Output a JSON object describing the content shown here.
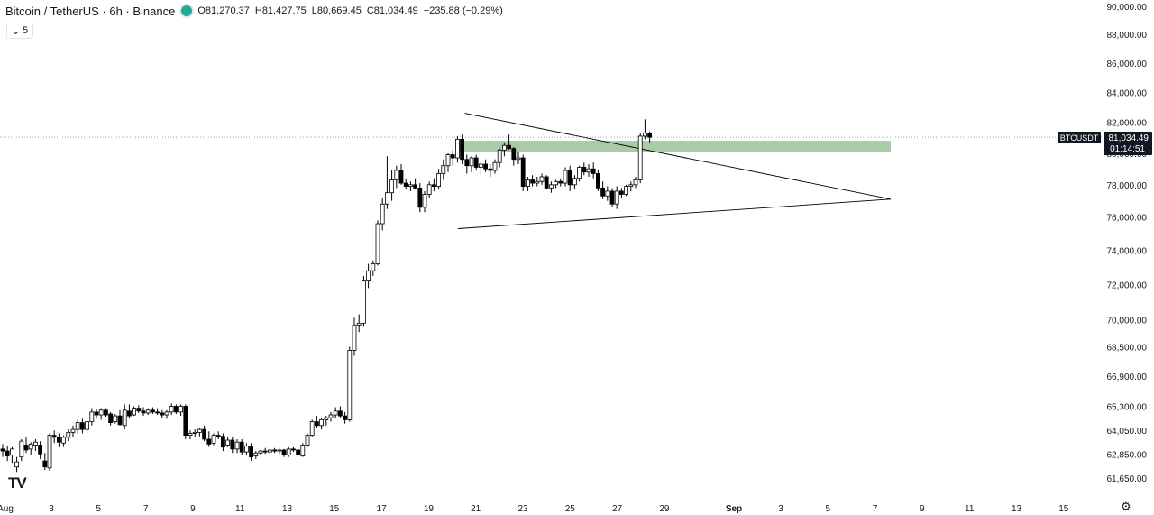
{
  "header": {
    "symbol_title": "Bitcoin / TetherUS · 6h · Binance",
    "open_label": "O",
    "open": "81,270.37",
    "high_label": "H",
    "high": "81,427.75",
    "low_label": "L",
    "low": "80,669.45",
    "close_label": "C",
    "close": "81,034.49",
    "change": "−235.88 (−0.29%)",
    "status_color": "#26a69a"
  },
  "indicator_toggle": {
    "icon": "chevron-down-icon",
    "count": "5"
  },
  "logo_text": "TV",
  "price_tag": {
    "symbol": "BTCUSDT",
    "price": "81,034.49",
    "countdown": "01:14:51"
  },
  "colors": {
    "up_fill": "#ffffff",
    "down_fill": "#000000",
    "wick": "#000000",
    "zone": "#a5c8a3",
    "axis_text": "#131722"
  },
  "chart_data": {
    "type": "candlestick",
    "y_scale": "log",
    "ylim": [
      61000,
      90800
    ],
    "y_ticks": [
      "90,000.00",
      "88,000.00",
      "86,000.00",
      "84,000.00",
      "82,000.00",
      "80,000.00",
      "78,000.00",
      "76,000.00",
      "74,000.00",
      "72,000.00",
      "70,000.00",
      "68,500.00",
      "66,900.00",
      "65,300.00",
      "64,050.00",
      "62,850.00",
      "61,650.00"
    ],
    "x_ticks": [
      "Aug",
      "3",
      "5",
      "7",
      "9",
      "11",
      "13",
      "15",
      "17",
      "19",
      "21",
      "23",
      "25",
      "27",
      "29",
      "Sep",
      "3",
      "5",
      "7",
      "9",
      "11",
      "13",
      "15"
    ],
    "current_price": 81034.49,
    "candles": [
      [
        63100,
        63350,
        62700,
        63000
      ],
      [
        63000,
        63250,
        62500,
        62750
      ],
      [
        62800,
        63200,
        62400,
        63100
      ],
      [
        62200,
        62700,
        61950,
        62450
      ],
      [
        62700,
        63600,
        62500,
        63500
      ],
      [
        63300,
        63700,
        62900,
        63050
      ],
      [
        63100,
        63450,
        62800,
        63350
      ],
      [
        63300,
        63600,
        63000,
        63450
      ],
      [
        63300,
        63500,
        62600,
        62850
      ],
      [
        62500,
        62900,
        62050,
        62200
      ],
      [
        62150,
        63900,
        62000,
        63800
      ],
      [
        63800,
        64050,
        63400,
        63700
      ],
      [
        63700,
        63900,
        63200,
        63450
      ],
      [
        63400,
        63800,
        63200,
        63700
      ],
      [
        63700,
        64100,
        63500,
        63950
      ],
      [
        63950,
        64300,
        63700,
        64100
      ],
      [
        64100,
        64600,
        63900,
        64450
      ],
      [
        64450,
        64650,
        63900,
        64100
      ],
      [
        64100,
        64600,
        63900,
        64500
      ],
      [
        64500,
        65200,
        64300,
        65000
      ],
      [
        65000,
        65150,
        64700,
        64850
      ],
      [
        64850,
        65200,
        64600,
        65100
      ],
      [
        65100,
        65200,
        64750,
        64850
      ],
      [
        64900,
        65000,
        64300,
        64450
      ],
      [
        64500,
        64900,
        64400,
        64800
      ],
      [
        64800,
        65100,
        64300,
        64350
      ],
      [
        64300,
        65400,
        64100,
        65100
      ],
      [
        65050,
        65400,
        64700,
        64800
      ],
      [
        64850,
        65300,
        64800,
        65200
      ],
      [
        65200,
        65350,
        64950,
        65050
      ],
      [
        65050,
        65250,
        64800,
        64950
      ],
      [
        64950,
        65200,
        64850,
        65100
      ],
      [
        65100,
        65250,
        64900,
        65000
      ],
      [
        65000,
        65200,
        64850,
        64950
      ],
      [
        64950,
        65100,
        64700,
        64850
      ],
      [
        64850,
        65100,
        64650,
        65000
      ],
      [
        65000,
        65450,
        64850,
        65300
      ],
      [
        65300,
        65400,
        64900,
        65000
      ],
      [
        65000,
        65400,
        64800,
        65300
      ],
      [
        65300,
        65400,
        63600,
        63800
      ],
      [
        63800,
        64050,
        63600,
        63900
      ],
      [
        63900,
        64100,
        63700,
        63950
      ],
      [
        63950,
        64200,
        63750,
        64100
      ],
      [
        64100,
        64300,
        63500,
        63600
      ],
      [
        63600,
        64000,
        63200,
        63350
      ],
      [
        63400,
        63900,
        63300,
        63800
      ],
      [
        63800,
        64000,
        63600,
        63750
      ],
      [
        63750,
        63900,
        63000,
        63200
      ],
      [
        63300,
        63700,
        63200,
        63550
      ],
      [
        63550,
        63700,
        62900,
        63100
      ],
      [
        63100,
        63600,
        62900,
        63450
      ],
      [
        63450,
        63600,
        62800,
        62950
      ],
      [
        62950,
        63400,
        62800,
        63250
      ],
      [
        63250,
        63400,
        62500,
        62700
      ],
      [
        62750,
        63000,
        62600,
        62900
      ],
      [
        62900,
        63050,
        62800,
        63000
      ],
      [
        63000,
        63150,
        62850,
        62950
      ],
      [
        62950,
        63100,
        62800,
        63050
      ],
      [
        63050,
        63150,
        62900,
        63000
      ],
      [
        63000,
        63100,
        62850,
        63050
      ],
      [
        63050,
        63100,
        62700,
        62800
      ],
      [
        62800,
        63200,
        62700,
        63100
      ],
      [
        63100,
        63200,
        62950,
        63050
      ],
      [
        63050,
        63150,
        62700,
        62800
      ],
      [
        62750,
        63400,
        62700,
        63300
      ],
      [
        63300,
        63900,
        63200,
        63800
      ],
      [
        63800,
        64600,
        63700,
        64500
      ],
      [
        64500,
        64800,
        64200,
        64300
      ],
      [
        64300,
        64700,
        64100,
        64600
      ],
      [
        64600,
        64800,
        64300,
        64700
      ],
      [
        64700,
        65000,
        64500,
        64850
      ],
      [
        64850,
        65250,
        64700,
        65050
      ],
      [
        65050,
        65300,
        64700,
        64800
      ],
      [
        64800,
        65000,
        64400,
        64600
      ],
      [
        64600,
        68500,
        64500,
        68300
      ],
      [
        68300,
        70100,
        68000,
        69700
      ],
      [
        69700,
        70300,
        69300,
        69800
      ],
      [
        69800,
        72500,
        69600,
        72200
      ],
      [
        72200,
        73200,
        71800,
        72800
      ],
      [
        72800,
        73400,
        72500,
        73200
      ],
      [
        73200,
        75800,
        73100,
        75600
      ],
      [
        75600,
        77200,
        75200,
        76800
      ],
      [
        76800,
        79800,
        76500,
        77500
      ],
      [
        77500,
        78900,
        77000,
        78300
      ],
      [
        78300,
        79200,
        77800,
        78900
      ],
      [
        78900,
        79300,
        78000,
        78100
      ],
      [
        78100,
        78400,
        77700,
        77900
      ],
      [
        77900,
        78200,
        77600,
        78000
      ],
      [
        78000,
        78400,
        77700,
        77800
      ],
      [
        77800,
        78100,
        76300,
        76600
      ],
      [
        76600,
        77600,
        76300,
        77400
      ],
      [
        77400,
        78200,
        77200,
        78000
      ],
      [
        78000,
        78400,
        77600,
        77900
      ],
      [
        77900,
        79000,
        77700,
        78700
      ],
      [
        78700,
        79600,
        78300,
        79200
      ],
      [
        79200,
        80000,
        78800,
        79900
      ],
      [
        79900,
        80200,
        79200,
        79700
      ],
      [
        79700,
        81100,
        79400,
        80900
      ],
      [
        80900,
        81200,
        79300,
        79600
      ],
      [
        79600,
        79900,
        78700,
        79200
      ],
      [
        79200,
        79800,
        78800,
        79700
      ],
      [
        79700,
        79900,
        78900,
        79100
      ],
      [
        79100,
        79500,
        78600,
        79300
      ],
      [
        79300,
        79600,
        78800,
        79000
      ],
      [
        79000,
        79300,
        78500,
        78900
      ],
      [
        78900,
        79600,
        78700,
        79400
      ],
      [
        79400,
        80300,
        79100,
        80200
      ],
      [
        80200,
        80700,
        79800,
        80500
      ],
      [
        80500,
        81200,
        80200,
        80300
      ],
      [
        80300,
        80400,
        79200,
        79600
      ],
      [
        79600,
        80100,
        79300,
        79700
      ],
      [
        79700,
        79900,
        77600,
        77900
      ],
      [
        77900,
        78500,
        77600,
        78300
      ],
      [
        78300,
        78600,
        77900,
        78100
      ],
      [
        78100,
        78500,
        77900,
        78200
      ],
      [
        78200,
        78700,
        78000,
        78500
      ],
      [
        78500,
        78600,
        77700,
        77800
      ],
      [
        77800,
        78200,
        77500,
        78000
      ],
      [
        78000,
        78300,
        77800,
        78200
      ],
      [
        78200,
        78400,
        77900,
        78100
      ],
      [
        78100,
        79100,
        77900,
        78900
      ],
      [
        78900,
        79200,
        77600,
        78000
      ],
      [
        78000,
        78600,
        77700,
        78400
      ],
      [
        78400,
        79200,
        78200,
        79100
      ],
      [
        79100,
        79400,
        78600,
        78800
      ],
      [
        78800,
        79300,
        78500,
        79000
      ],
      [
        79000,
        79400,
        78400,
        78700
      ],
      [
        78700,
        78900,
        77600,
        77800
      ],
      [
        77800,
        78200,
        77100,
        77300
      ],
      [
        77300,
        77900,
        77000,
        77600
      ],
      [
        77600,
        77800,
        76600,
        76800
      ],
      [
        76800,
        77900,
        76500,
        77600
      ],
      [
        77600,
        77800,
        77200,
        77400
      ],
      [
        77400,
        78000,
        77300,
        77900
      ],
      [
        77900,
        78200,
        77600,
        78000
      ],
      [
        78000,
        78500,
        77800,
        78300
      ],
      [
        78300,
        81300,
        78100,
        81100
      ],
      [
        81100,
        82200,
        80900,
        81300
      ],
      [
        81300,
        81400,
        80700,
        81030
      ]
    ],
    "lines": [
      {
        "name": "descending",
        "from": [
          "~Aug 20.6",
          82600
        ],
        "to": [
          "~Sep 7.7",
          77100
        ]
      },
      {
        "name": "ascending",
        "from": [
          "~Aug 20.3",
          75300
        ],
        "to": [
          "~Sep 7.7",
          77100
        ]
      }
    ],
    "zone": {
      "from_x": "~Aug 20.3",
      "to_x": "~Sep 7.7",
      "price_low": 80100,
      "price_high": 80800
    }
  }
}
